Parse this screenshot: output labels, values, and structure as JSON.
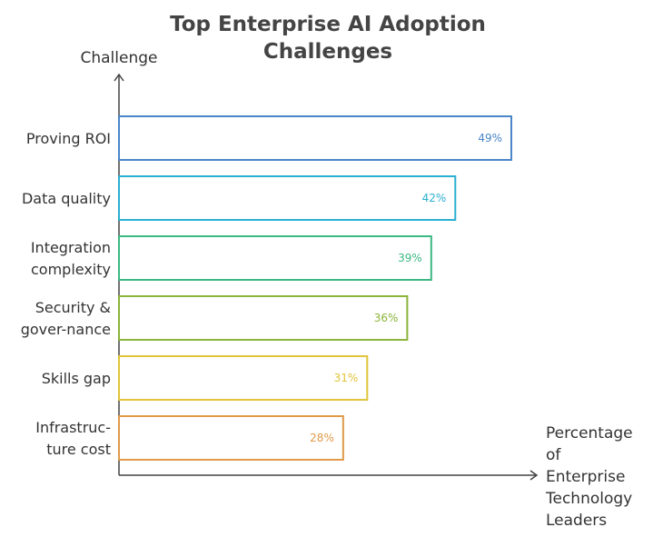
{
  "chart_data": {
    "type": "bar",
    "orientation": "horizontal",
    "title_lines": [
      "Top Enterprise AI Adoption",
      "Challenges"
    ],
    "ylabel": "Challenge",
    "xlabel_lines": [
      "Percentage",
      "of",
      "Enterprise",
      "Technology",
      "Leaders"
    ],
    "categories": [
      [
        "Proving ROI"
      ],
      [
        "Data quality"
      ],
      [
        "Integration",
        "complexity"
      ],
      [
        "Security &",
        "gover-nance"
      ],
      [
        "Skills gap"
      ],
      [
        "Infrastruc-",
        "ture cost"
      ]
    ],
    "values": [
      49,
      42,
      39,
      36,
      31,
      28
    ],
    "value_labels": [
      "49%",
      "42%",
      "39%",
      "36%",
      "31%",
      "28%"
    ],
    "colors": [
      "#4a86c8",
      "#2bb0d0",
      "#3cb883",
      "#8ab43a",
      "#e0c43a",
      "#e09a4a"
    ],
    "xlim": [
      0,
      49
    ],
    "grid": false,
    "legend": "none"
  }
}
